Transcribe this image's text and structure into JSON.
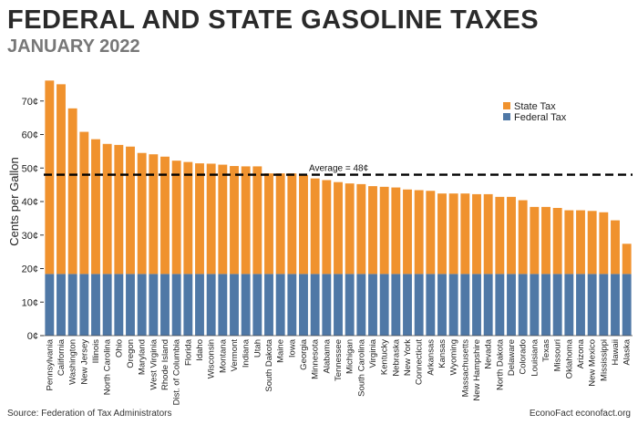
{
  "header": {
    "title": "FEDERAL AND STATE GASOLINE TAXES",
    "subtitle": "JANUARY 2022"
  },
  "footer": {
    "source": "Source: Federation of Tax Administrators",
    "credit": "EconoFact econofact.org"
  },
  "colors": {
    "state": "#f0922e",
    "federal": "#4f78a6",
    "average_line": "#000000"
  },
  "chart_data": {
    "type": "bar",
    "stacked": true,
    "title": "FEDERAL AND STATE GASOLINE TAXES",
    "subtitle": "JANUARY 2022",
    "ylabel": "Cents per Gallon",
    "ylim": [
      0,
      80
    ],
    "yticks": [
      0,
      10,
      20,
      30,
      40,
      50,
      60,
      70
    ],
    "ytick_labels": [
      "0¢",
      "10¢",
      "20¢",
      "30¢",
      "40¢",
      "50¢",
      "60¢",
      "70¢"
    ],
    "legend_position": "top-right",
    "categories": [
      "Pennsylvania",
      "California",
      "Washington",
      "New Jersey",
      "Illinois",
      "North Carolina",
      "Ohio",
      "Oregon",
      "Maryland",
      "West Virginia",
      "Rhode Island",
      "Dist. of Columbia",
      "Florida",
      "Idaho",
      "Wisconsin",
      "Montana",
      "Vermont",
      "Indiana",
      "Utah",
      "South Dakota",
      "Maine",
      "Iowa",
      "Georgia",
      "Minnesota",
      "Alabama",
      "Tennessee",
      "Michigan",
      "South Carolina",
      "Virginia",
      "Kentucky",
      "Nebraska",
      "New York",
      "Connecticut",
      "Arkansas",
      "Kansas",
      "Wyoming",
      "Massachusetts",
      "New Hampshire",
      "Nevada",
      "North Dakota",
      "Delaware",
      "Colorado",
      "Louisiana",
      "Texas",
      "Missouri",
      "Oklahoma",
      "Arizona",
      "New Mexico",
      "Mississippi",
      "Hawaii",
      "Alaska"
    ],
    "series": [
      {
        "name": "Federal Tax",
        "values": [
          18.4,
          18.4,
          18.4,
          18.4,
          18.4,
          18.4,
          18.4,
          18.4,
          18.4,
          18.4,
          18.4,
          18.4,
          18.4,
          18.4,
          18.4,
          18.4,
          18.4,
          18.4,
          18.4,
          18.4,
          18.4,
          18.4,
          18.4,
          18.4,
          18.4,
          18.4,
          18.4,
          18.4,
          18.4,
          18.4,
          18.4,
          18.4,
          18.4,
          18.4,
          18.4,
          18.4,
          18.4,
          18.4,
          18.4,
          18.4,
          18.4,
          18.4,
          18.4,
          18.4,
          18.4,
          18.4,
          18.4,
          18.4,
          18.4,
          18.4,
          18.4
        ]
      },
      {
        "name": "State Tax",
        "values": [
          57.7,
          56.6,
          49.4,
          42.4,
          40.2,
          38.8,
          38.5,
          38.0,
          36.1,
          35.7,
          35.0,
          33.8,
          33.4,
          33.0,
          32.9,
          32.6,
          32.2,
          32.1,
          32.1,
          30.0,
          30.0,
          30.0,
          29.5,
          28.5,
          28.0,
          27.4,
          27.0,
          26.8,
          26.2,
          26.0,
          25.8,
          25.2,
          25.0,
          24.8,
          24.0,
          24.0,
          24.0,
          23.8,
          23.8,
          23.0,
          23.0,
          22.0,
          20.0,
          20.0,
          19.7,
          19.0,
          19.0,
          18.8,
          18.4,
          16.0,
          9.0
        ]
      }
    ],
    "average": {
      "value": 48,
      "label": "Average = 48¢"
    }
  }
}
